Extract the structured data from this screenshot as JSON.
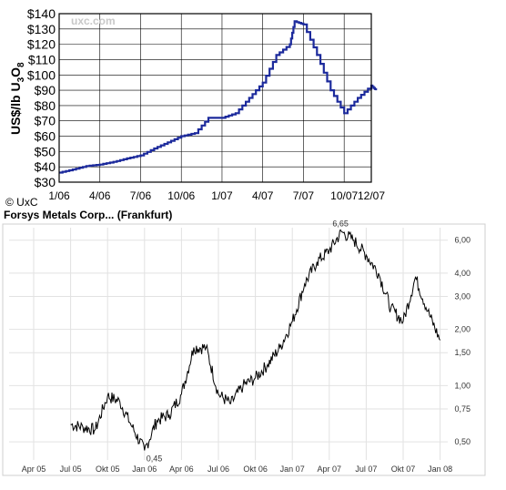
{
  "chart_data": [
    {
      "type": "line",
      "title": "",
      "ylabel": "US$/lb U3O8",
      "ylabel_parts": {
        "main": "US$/lb U",
        "sub1": "3",
        "mid": "O",
        "sub2": "8"
      },
      "watermark": "uxc.com",
      "copyright": "© UxC",
      "ylim": [
        30,
        140
      ],
      "yticks": [
        140,
        130,
        120,
        110,
        100,
        90,
        80,
        70,
        60,
        50,
        40,
        30
      ],
      "ytick_labels": [
        "$140",
        "$130",
        "$120",
        "$110",
        "$100",
        "$90",
        "$80",
        "$70",
        "$60",
        "$50",
        "$40",
        "$30"
      ],
      "xticks": [
        "1/06",
        "4/06",
        "7/06",
        "10/06",
        "1/07",
        "4/07",
        "7/07",
        "10/07",
        "12/07"
      ],
      "grid": true,
      "color": "#1c2a9c",
      "series": [
        {
          "x": [
            "1/06",
            "2/06",
            "3/06",
            "4/06",
            "5/06",
            "6/06",
            "7/06",
            "8/06",
            "9/06",
            "10/06",
            "11/06",
            "12/06",
            "1/07",
            "2/07",
            "3/07",
            "4/07",
            "5/07",
            "6/07",
            "6/07",
            "7/07",
            "8/07",
            "9/07",
            "10/07",
            "11/07",
            "12/07",
            "12/07"
          ],
          "y": [
            36.25,
            38.25,
            40.5,
            41.5,
            43.25,
            45.5,
            47.5,
            52,
            56,
            60,
            62,
            72,
            72,
            75,
            85,
            95,
            113,
            120,
            135,
            133,
            113,
            90,
            75,
            85,
            93,
            90
          ]
        }
      ]
    },
    {
      "type": "line",
      "title": "Forsys Metals Corp... (Frankfurt)",
      "yscale": "log",
      "ylim": [
        0.4,
        7
      ],
      "yticks": [
        6.0,
        4.0,
        3.0,
        2.0,
        1.5,
        1.0,
        0.75,
        0.5
      ],
      "ytick_labels": [
        "6,00",
        "4,00",
        "3,00",
        "2,00",
        "1,50",
        "1,00",
        "0,75",
        "0,50"
      ],
      "xticks": [
        "Apr 05",
        "Jul 05",
        "Okt 05",
        "Jan 06",
        "Apr 06",
        "Jul 06",
        "Okt 06",
        "Jan 07",
        "Apr 07",
        "Jul 07",
        "Okt 07",
        "Jan 08"
      ],
      "grid": true,
      "color": "#000000",
      "annotations": [
        {
          "text": "6,65",
          "x": "Apr 07",
          "y": 6.65
        },
        {
          "text": "0,45",
          "x": "Jan 06",
          "y": 0.45
        }
      ],
      "series": [
        {
          "x": [
            "Jul 05",
            "Aug 05",
            "Sep 05",
            "Okt 05",
            "Nov 05",
            "Dez 05",
            "Jan 06",
            "Feb 06",
            "Mrz 06",
            "Apr 06",
            "Mai 06",
            "Jun 06",
            "Jul 06",
            "Aug 06",
            "Sep 06",
            "Okt 06",
            "Nov 06",
            "Dez 06",
            "Jan 07",
            "Feb 07",
            "Mrz 07",
            "Apr 07",
            "Mai 07",
            "Jun 07",
            "Jul 07",
            "Aug 07",
            "Sep 07",
            "Okt 07",
            "Nov 07",
            "Dez 07",
            "Jan 08"
          ],
          "y": [
            0.62,
            0.6,
            0.58,
            0.88,
            0.82,
            0.6,
            0.45,
            0.65,
            0.7,
            0.9,
            1.6,
            1.6,
            0.9,
            0.8,
            1.0,
            1.1,
            1.3,
            1.6,
            2.2,
            3.5,
            4.6,
            5.3,
            6.65,
            6.0,
            5.0,
            4.0,
            2.6,
            2.2,
            3.8,
            2.5,
            1.75
          ]
        }
      ]
    }
  ]
}
